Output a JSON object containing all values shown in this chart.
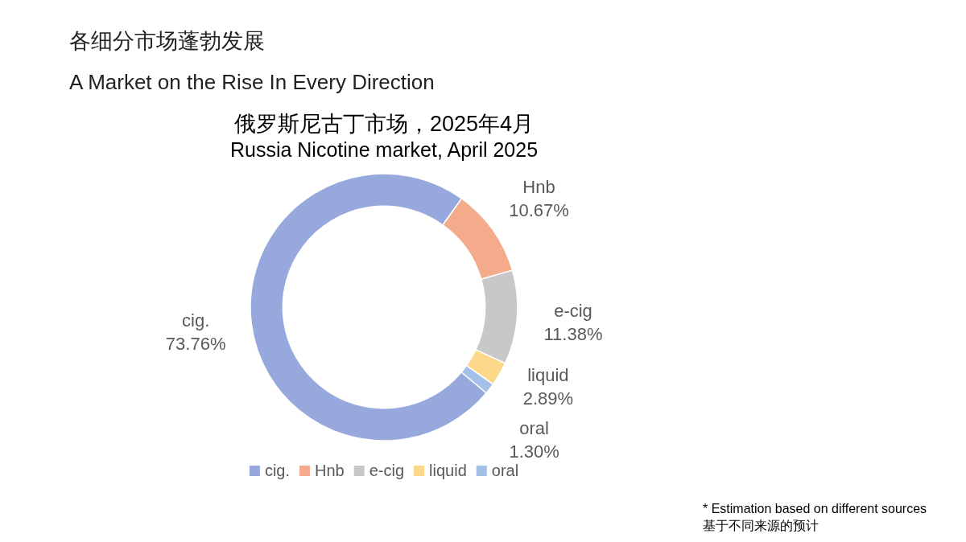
{
  "chart_data": {
    "type": "donut",
    "title": "俄罗斯尼古丁市场，2025年4月",
    "subtitle": "Russia Nicotine market, April 2025",
    "categories": [
      "cig.",
      "Hnb",
      "e-cig",
      "liquid",
      "oral"
    ],
    "values": [
      73.76,
      10.67,
      11.38,
      2.89,
      1.3
    ],
    "value_labels": [
      "73.76%",
      "10.67%",
      "11.38%",
      "2.89%",
      "1.30%"
    ],
    "colors": [
      "#97a8dc",
      "#f4ab8c",
      "#c8c8c8",
      "#fdd88a",
      "#a2c0e8"
    ],
    "legend": "bottom",
    "annotations": [
      "各细分市场蓬勃发展",
      "A Market on the Rise In Every Direction",
      "* Estimation based on different sources",
      "基于不同来源的预计"
    ]
  }
}
